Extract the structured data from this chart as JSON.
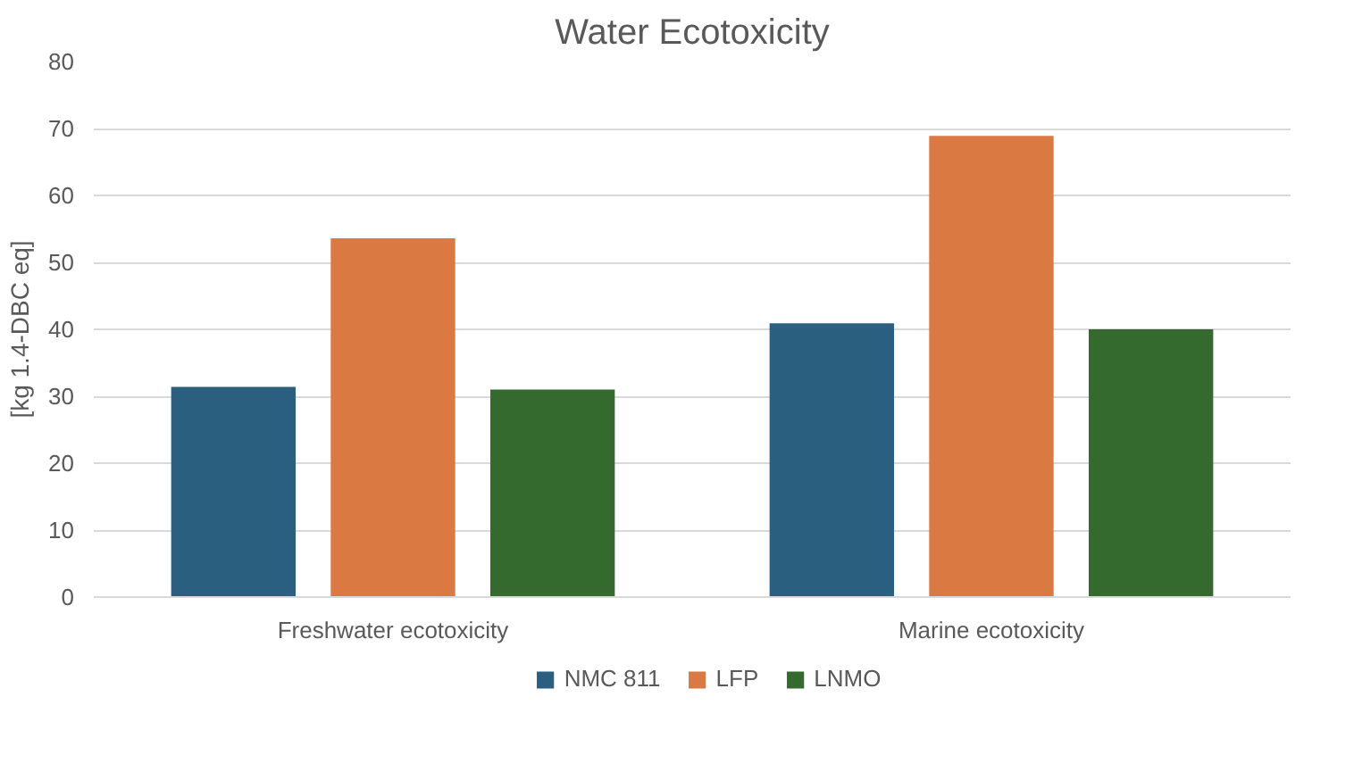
{
  "chart_data": {
    "type": "bar",
    "title": "Water Ecotoxicity",
    "ylabel": "[kg 1.4-DBC eq]",
    "categories": [
      "Freshwater ecotoxicity",
      "Marine ecotoxicity"
    ],
    "series": [
      {
        "name": "NMC 811",
        "color": "#2b5f80",
        "values": [
          31.4,
          40.9
        ]
      },
      {
        "name": "LFP",
        "color": "#db7943",
        "values": [
          53.6,
          68.9
        ]
      },
      {
        "name": "LNMO",
        "color": "#356a2e",
        "values": [
          31.0,
          40.0
        ]
      }
    ],
    "ylim": [
      0,
      80
    ],
    "yticks": [
      0,
      10,
      20,
      30,
      40,
      50,
      60,
      70,
      80
    ],
    "grid": "y",
    "legend": "bottom"
  }
}
